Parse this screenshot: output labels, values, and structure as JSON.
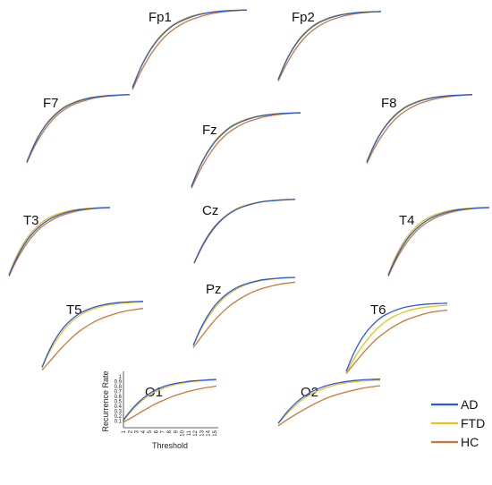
{
  "chart_data": {
    "type": "line",
    "title": "",
    "xlabel": "Threshold",
    "ylabel": "Recurrence Rate",
    "x": [
      1,
      2,
      3,
      4,
      5,
      6,
      7,
      8,
      9,
      10,
      11,
      12,
      13,
      14,
      15
    ],
    "x_ticks": [
      "1",
      "2",
      "3",
      "4",
      "5",
      "6",
      "7",
      "8",
      "9",
      "10",
      "11",
      "12",
      "13",
      "14",
      "15"
    ],
    "y_ticks": [
      "0.1",
      "0.2",
      "0.3",
      "0.4",
      "0.5",
      "0.6",
      "0.7",
      "0.8",
      "0.9",
      "1"
    ],
    "ylim": [
      0,
      1
    ],
    "xlim": [
      1,
      15
    ],
    "legend": {
      "placement": "bottom-right",
      "entries": [
        {
          "label": "AD",
          "color": "#2a5bd7"
        },
        {
          "label": "FTD",
          "color": "#e8c21a"
        },
        {
          "label": "HC",
          "color": "#c8783a"
        }
      ]
    },
    "channels": [
      {
        "name": "Fp1",
        "series": [
          {
            "name": "AD",
            "values": [
              0.06,
              0.3,
              0.48,
              0.62,
              0.72,
              0.8,
              0.85,
              0.89,
              0.92,
              0.94,
              0.955,
              0.965,
              0.97,
              0.975,
              0.978
            ]
          },
          {
            "name": "FTD",
            "values": [
              0.07,
              0.31,
              0.49,
              0.63,
              0.73,
              0.81,
              0.86,
              0.9,
              0.925,
              0.945,
              0.958,
              0.967,
              0.972,
              0.976,
              0.979
            ]
          },
          {
            "name": "HC",
            "values": [
              0.04,
              0.25,
              0.42,
              0.56,
              0.67,
              0.75,
              0.81,
              0.86,
              0.89,
              0.92,
              0.94,
              0.955,
              0.965,
              0.972,
              0.976
            ]
          }
        ]
      },
      {
        "name": "Fp2",
        "series": [
          {
            "name": "AD",
            "values": [
              0.06,
              0.3,
              0.48,
              0.62,
              0.72,
              0.8,
              0.85,
              0.89,
              0.92,
              0.94,
              0.955,
              0.965,
              0.97,
              0.975,
              0.978
            ]
          },
          {
            "name": "FTD",
            "values": [
              0.07,
              0.31,
              0.49,
              0.63,
              0.73,
              0.81,
              0.86,
              0.9,
              0.925,
              0.945,
              0.958,
              0.967,
              0.972,
              0.976,
              0.979
            ]
          },
          {
            "name": "HC",
            "values": [
              0.04,
              0.25,
              0.42,
              0.56,
              0.67,
              0.75,
              0.81,
              0.86,
              0.89,
              0.92,
              0.94,
              0.955,
              0.965,
              0.972,
              0.976
            ]
          }
        ]
      },
      {
        "name": "F7",
        "series": [
          {
            "name": "AD",
            "values": [
              0.06,
              0.3,
              0.48,
              0.62,
              0.72,
              0.8,
              0.85,
              0.89,
              0.92,
              0.94,
              0.955,
              0.965,
              0.97,
              0.975,
              0.978
            ]
          },
          {
            "name": "FTD",
            "values": [
              0.07,
              0.31,
              0.49,
              0.63,
              0.73,
              0.81,
              0.86,
              0.9,
              0.925,
              0.945,
              0.958,
              0.967,
              0.972,
              0.976,
              0.979
            ]
          },
          {
            "name": "HC",
            "values": [
              0.05,
              0.27,
              0.44,
              0.58,
              0.69,
              0.77,
              0.83,
              0.87,
              0.9,
              0.93,
              0.945,
              0.958,
              0.967,
              0.973,
              0.977
            ]
          }
        ]
      },
      {
        "name": "Fz",
        "series": [
          {
            "name": "AD",
            "values": [
              0.06,
              0.3,
              0.48,
              0.62,
              0.72,
              0.8,
              0.85,
              0.89,
              0.92,
              0.94,
              0.955,
              0.965,
              0.97,
              0.975,
              0.978
            ]
          },
          {
            "name": "FTD",
            "values": [
              0.07,
              0.31,
              0.49,
              0.63,
              0.73,
              0.81,
              0.86,
              0.9,
              0.925,
              0.945,
              0.958,
              0.967,
              0.972,
              0.976,
              0.979
            ]
          },
          {
            "name": "HC",
            "values": [
              0.04,
              0.25,
              0.42,
              0.56,
              0.67,
              0.75,
              0.81,
              0.86,
              0.89,
              0.92,
              0.94,
              0.955,
              0.965,
              0.972,
              0.976
            ]
          }
        ]
      },
      {
        "name": "F8",
        "series": [
          {
            "name": "AD",
            "values": [
              0.06,
              0.3,
              0.48,
              0.62,
              0.72,
              0.8,
              0.85,
              0.89,
              0.92,
              0.94,
              0.955,
              0.965,
              0.97,
              0.975,
              0.978
            ]
          },
          {
            "name": "FTD",
            "values": [
              0.07,
              0.31,
              0.49,
              0.63,
              0.73,
              0.81,
              0.86,
              0.9,
              0.925,
              0.945,
              0.958,
              0.967,
              0.972,
              0.976,
              0.979
            ]
          },
          {
            "name": "HC",
            "values": [
              0.04,
              0.25,
              0.42,
              0.56,
              0.67,
              0.75,
              0.81,
              0.86,
              0.89,
              0.92,
              0.94,
              0.955,
              0.965,
              0.972,
              0.976
            ]
          }
        ]
      },
      {
        "name": "T3",
        "series": [
          {
            "name": "AD",
            "values": [
              0.05,
              0.28,
              0.46,
              0.6,
              0.7,
              0.78,
              0.84,
              0.88,
              0.91,
              0.935,
              0.95,
              0.96,
              0.968,
              0.973,
              0.976
            ]
          },
          {
            "name": "FTD",
            "values": [
              0.07,
              0.31,
              0.49,
              0.63,
              0.73,
              0.81,
              0.86,
              0.9,
              0.925,
              0.945,
              0.958,
              0.967,
              0.972,
              0.976,
              0.979
            ]
          },
          {
            "name": "HC",
            "values": [
              0.04,
              0.25,
              0.42,
              0.56,
              0.67,
              0.75,
              0.81,
              0.86,
              0.89,
              0.92,
              0.94,
              0.955,
              0.965,
              0.972,
              0.976
            ]
          }
        ]
      },
      {
        "name": "Cz",
        "series": [
          {
            "name": "AD",
            "values": [
              0.05,
              0.28,
              0.46,
              0.6,
              0.7,
              0.78,
              0.84,
              0.88,
              0.91,
              0.935,
              0.95,
              0.96,
              0.968,
              0.973,
              0.976
            ]
          },
          {
            "name": "FTD",
            "values": [
              0.06,
              0.29,
              0.47,
              0.61,
              0.71,
              0.79,
              0.85,
              0.89,
              0.915,
              0.94,
              0.953,
              0.963,
              0.97,
              0.975,
              0.978
            ]
          },
          {
            "name": "HC",
            "values": [
              0.05,
              0.27,
              0.45,
              0.59,
              0.7,
              0.78,
              0.84,
              0.88,
              0.91,
              0.935,
              0.95,
              0.96,
              0.968,
              0.974,
              0.978
            ]
          }
        ]
      },
      {
        "name": "T4",
        "series": [
          {
            "name": "AD",
            "values": [
              0.05,
              0.28,
              0.46,
              0.6,
              0.7,
              0.78,
              0.84,
              0.88,
              0.91,
              0.935,
              0.95,
              0.96,
              0.968,
              0.973,
              0.976
            ]
          },
          {
            "name": "FTD",
            "values": [
              0.07,
              0.31,
              0.49,
              0.63,
              0.73,
              0.81,
              0.86,
              0.9,
              0.925,
              0.945,
              0.958,
              0.967,
              0.972,
              0.976,
              0.979
            ]
          },
          {
            "name": "HC",
            "values": [
              0.04,
              0.25,
              0.42,
              0.56,
              0.67,
              0.75,
              0.81,
              0.86,
              0.89,
              0.92,
              0.94,
              0.955,
              0.965,
              0.972,
              0.976
            ]
          }
        ]
      },
      {
        "name": "T5",
        "series": [
          {
            "name": "AD",
            "values": [
              0.06,
              0.3,
              0.48,
              0.62,
              0.72,
              0.8,
              0.85,
              0.89,
              0.92,
              0.94,
              0.955,
              0.965,
              0.97,
              0.975,
              0.978
            ]
          },
          {
            "name": "FTD",
            "values": [
              0.05,
              0.27,
              0.44,
              0.58,
              0.69,
              0.77,
              0.83,
              0.87,
              0.9,
              0.925,
              0.94,
              0.952,
              0.96,
              0.966,
              0.97
            ]
          },
          {
            "name": "HC",
            "values": [
              0.02,
              0.13,
              0.25,
              0.36,
              0.46,
              0.55,
              0.62,
              0.68,
              0.73,
              0.77,
              0.8,
              0.83,
              0.85,
              0.865,
              0.88
            ]
          }
        ]
      },
      {
        "name": "Pz",
        "series": [
          {
            "name": "AD",
            "values": [
              0.05,
              0.28,
              0.46,
              0.6,
              0.7,
              0.78,
              0.84,
              0.88,
              0.91,
              0.935,
              0.95,
              0.96,
              0.968,
              0.973,
              0.976
            ]
          },
          {
            "name": "FTD",
            "values": [
              0.05,
              0.26,
              0.43,
              0.57,
              0.68,
              0.76,
              0.82,
              0.87,
              0.9,
              0.925,
              0.943,
              0.955,
              0.964,
              0.97,
              0.975
            ]
          },
          {
            "name": "HC",
            "values": [
              0.02,
              0.15,
              0.28,
              0.4,
              0.5,
              0.59,
              0.66,
              0.72,
              0.77,
              0.81,
              0.84,
              0.865,
              0.885,
              0.9,
              0.91
            ]
          }
        ]
      },
      {
        "name": "T6",
        "series": [
          {
            "name": "AD",
            "values": [
              0.06,
              0.3,
              0.48,
              0.62,
              0.72,
              0.8,
              0.85,
              0.89,
              0.92,
              0.94,
              0.955,
              0.965,
              0.97,
              0.975,
              0.978
            ]
          },
          {
            "name": "FTD",
            "values": [
              0.04,
              0.22,
              0.37,
              0.5,
              0.61,
              0.7,
              0.77,
              0.82,
              0.86,
              0.89,
              0.91,
              0.925,
              0.935,
              0.945,
              0.95
            ]
          },
          {
            "name": "HC",
            "values": [
              0.03,
              0.15,
              0.27,
              0.38,
              0.48,
              0.56,
              0.63,
              0.69,
              0.74,
              0.78,
              0.81,
              0.84,
              0.86,
              0.875,
              0.885
            ]
          }
        ]
      },
      {
        "name": "O1",
        "series": [
          {
            "name": "AD",
            "values": [
              0.12,
              0.3,
              0.45,
              0.57,
              0.67,
              0.74,
              0.8,
              0.84,
              0.87,
              0.89,
              0.91,
              0.92,
              0.93,
              0.94,
              0.945
            ]
          },
          {
            "name": "FTD",
            "values": [
              0.11,
              0.27,
              0.42,
              0.54,
              0.64,
              0.71,
              0.77,
              0.81,
              0.85,
              0.875,
              0.895,
              0.91,
              0.92,
              0.93,
              0.935
            ]
          },
          {
            "name": "HC",
            "values": [
              0.08,
              0.15,
              0.23,
              0.31,
              0.39,
              0.46,
              0.52,
              0.58,
              0.63,
              0.67,
              0.71,
              0.74,
              0.77,
              0.79,
              0.81
            ]
          }
        ]
      },
      {
        "name": "O2",
        "series": [
          {
            "name": "AD",
            "values": [
              0.09,
              0.28,
              0.44,
              0.57,
              0.67,
              0.75,
              0.81,
              0.855,
              0.89,
              0.915,
              0.935,
              0.95,
              0.96,
              0.965,
              0.97
            ]
          },
          {
            "name": "FTD",
            "values": [
              0.08,
              0.25,
              0.4,
              0.53,
              0.63,
              0.71,
              0.77,
              0.82,
              0.86,
              0.89,
              0.91,
              0.925,
              0.935,
              0.945,
              0.95
            ]
          },
          {
            "name": "HC",
            "values": [
              0.04,
              0.14,
              0.23,
              0.32,
              0.4,
              0.48,
              0.55,
              0.61,
              0.66,
              0.7,
              0.74,
              0.77,
              0.8,
              0.82,
              0.84
            ]
          }
        ]
      }
    ]
  }
}
